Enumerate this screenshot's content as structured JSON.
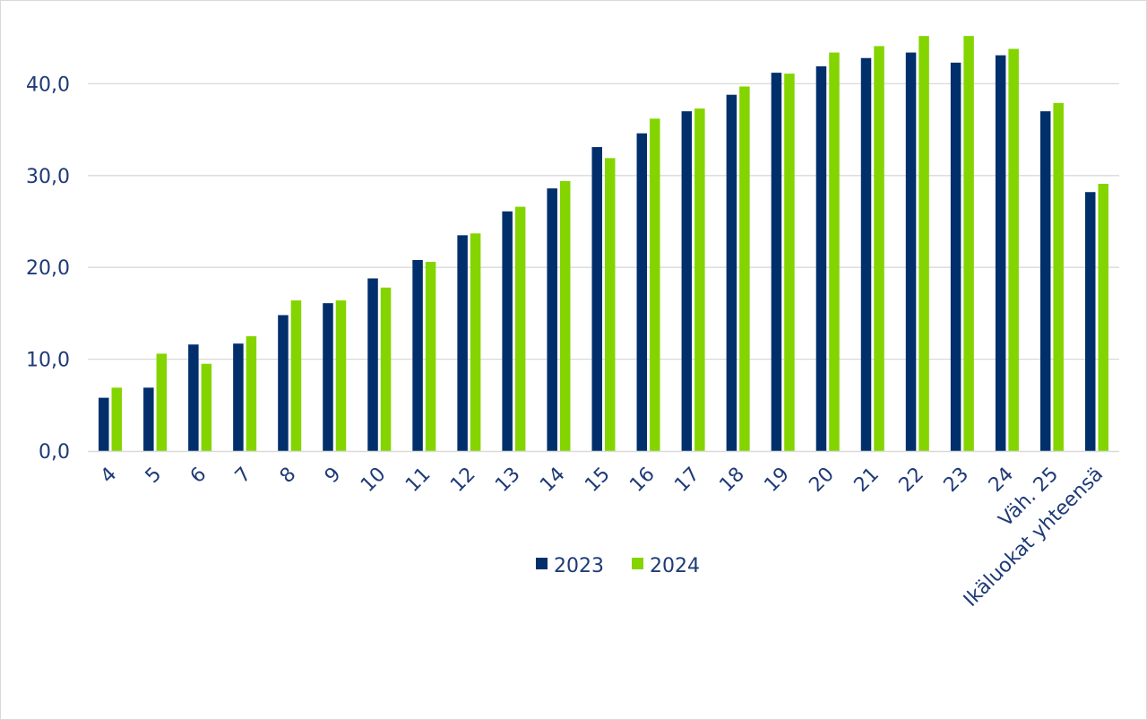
{
  "chart_data": {
    "type": "bar",
    "categories": [
      "4",
      "5",
      "6",
      "7",
      "8",
      "9",
      "10",
      "11",
      "12",
      "13",
      "14",
      "15",
      "16",
      "17",
      "18",
      "19",
      "20",
      "21",
      "22",
      "23",
      "24",
      "Väh. 25",
      "Ikäluokat yhteensä"
    ],
    "series": [
      {
        "name": "2023",
        "color": "#002f6c",
        "values": [
          5.8,
          6.9,
          11.6,
          11.7,
          14.8,
          16.1,
          18.8,
          20.8,
          23.5,
          26.1,
          28.6,
          33.1,
          34.6,
          37.0,
          38.8,
          41.2,
          41.9,
          42.8,
          43.4,
          42.3,
          43.1,
          37.0,
          28.2
        ]
      },
      {
        "name": "2024",
        "color": "#84d400",
        "values": [
          6.9,
          10.6,
          9.5,
          12.5,
          16.4,
          16.4,
          17.8,
          20.6,
          23.7,
          26.6,
          29.4,
          31.9,
          36.2,
          37.3,
          39.7,
          41.1,
          43.4,
          44.1,
          45.2,
          45.2,
          43.8,
          37.9,
          29.1
        ]
      }
    ],
    "y_ticks": [
      "0,0",
      "10,0",
      "20,0",
      "30,0",
      "40,0"
    ],
    "ylim": [
      0,
      45
    ],
    "grid": true,
    "legend_position": "bottom-center",
    "title": "",
    "xlabel": "",
    "ylabel": ""
  }
}
